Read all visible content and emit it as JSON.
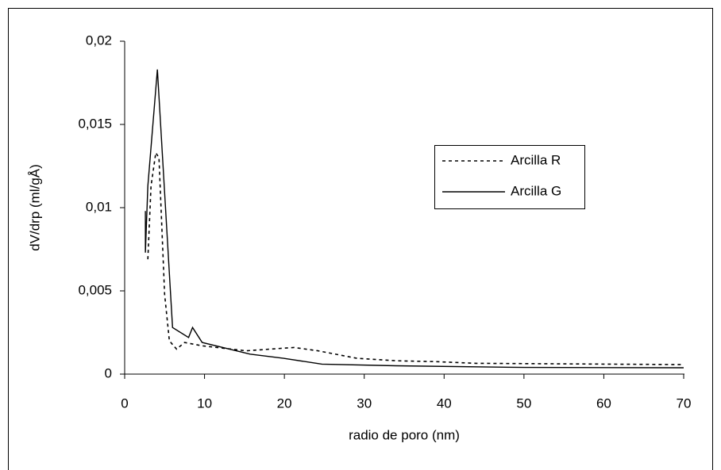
{
  "chart_data": {
    "type": "line",
    "x_label": "radio de poro (nm)",
    "y_label": "dV/drp (ml/gÅ)",
    "xlim": [
      0,
      70
    ],
    "xticks": [
      0,
      10,
      20,
      30,
      40,
      50,
      60,
      70
    ],
    "ylim": [
      0,
      0.02
    ],
    "yticks": [
      0,
      {
        "value": 0.005,
        "label": "0,005"
      },
      {
        "value": 0.01,
        "label": "0,01"
      },
      {
        "value": 0.015,
        "label": "0,015"
      },
      {
        "value": 0.02,
        "label": "0,02"
      }
    ],
    "legend": "right",
    "series": [
      {
        "name": "Arcilla R",
        "color": "#000000",
        "dash": "dotted",
        "x": [
          2.9,
          3.3,
          3.9,
          4.3,
          5.0,
          5.6,
          6.5,
          7.5,
          9.7,
          15.2,
          18.2,
          21.2,
          24.2,
          29.1,
          34,
          39,
          44,
          70
        ],
        "values": [
          0.0069,
          0.0113,
          0.0133,
          0.013,
          0.0048,
          0.002,
          0.0015,
          0.0019,
          0.0017,
          0.0014,
          0.0015,
          0.0016,
          0.0014,
          0.00095,
          0.0008,
          0.00075,
          0.00065,
          0.00057
        ]
      },
      {
        "name": "Arcilla G",
        "color": "#000000",
        "dash": "solid",
        "x": [
          2.6,
          2.6,
          2.9,
          4.1,
          6.0,
          8.0,
          8.5,
          9.7,
          15.7,
          19.9,
          24.7,
          34,
          50,
          70
        ],
        "values": [
          0.0098,
          0.0073,
          0.0113,
          0.0183,
          0.0028,
          0.0022,
          0.0028,
          0.0019,
          0.0012,
          0.00095,
          0.0006,
          0.0005,
          0.0004,
          0.00038
        ]
      }
    ]
  }
}
